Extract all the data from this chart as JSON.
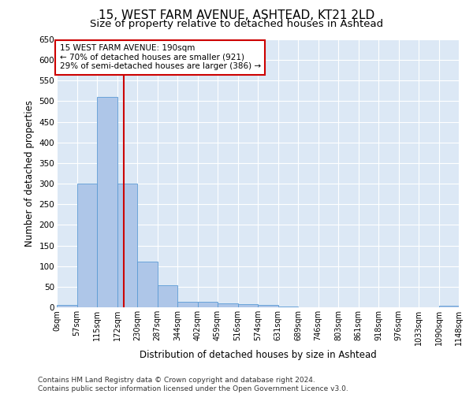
{
  "title": "15, WEST FARM AVENUE, ASHTEAD, KT21 2LD",
  "subtitle": "Size of property relative to detached houses in Ashtead",
  "xlabel": "Distribution of detached houses by size in Ashtead",
  "ylabel": "Number of detached properties",
  "bin_labels": [
    "0sqm",
    "57sqm",
    "115sqm",
    "172sqm",
    "230sqm",
    "287sqm",
    "344sqm",
    "402sqm",
    "459sqm",
    "516sqm",
    "574sqm",
    "631sqm",
    "689sqm",
    "746sqm",
    "803sqm",
    "861sqm",
    "918sqm",
    "976sqm",
    "1033sqm",
    "1090sqm",
    "1148sqm"
  ],
  "bar_values": [
    5,
    300,
    510,
    300,
    110,
    53,
    13,
    13,
    10,
    7,
    5,
    2,
    0,
    0,
    0,
    0,
    0,
    0,
    0,
    3
  ],
  "bar_color": "#aec6e8",
  "bar_edge_color": "#5b9bd5",
  "property_line_x": 190,
  "bin_width": 57,
  "ylim": [
    0,
    650
  ],
  "yticks": [
    0,
    50,
    100,
    150,
    200,
    250,
    300,
    350,
    400,
    450,
    500,
    550,
    600,
    650
  ],
  "annotation_title": "15 WEST FARM AVENUE: 190sqm",
  "annotation_line1": "← 70% of detached houses are smaller (921)",
  "annotation_line2": "29% of semi-detached houses are larger (386) →",
  "annotation_box_color": "#ffffff",
  "annotation_box_edge": "#cc0000",
  "property_line_color": "#cc0000",
  "footer_line1": "Contains HM Land Registry data © Crown copyright and database right 2024.",
  "footer_line2": "Contains public sector information licensed under the Open Government Licence v3.0.",
  "background_color": "#dce8f5",
  "grid_color": "#ffffff",
  "fig_bg_color": "#ffffff",
  "title_fontsize": 11,
  "subtitle_fontsize": 9.5,
  "axis_label_fontsize": 8.5,
  "tick_fontsize": 7.5,
  "annotation_fontsize": 7.5,
  "footer_fontsize": 6.5
}
